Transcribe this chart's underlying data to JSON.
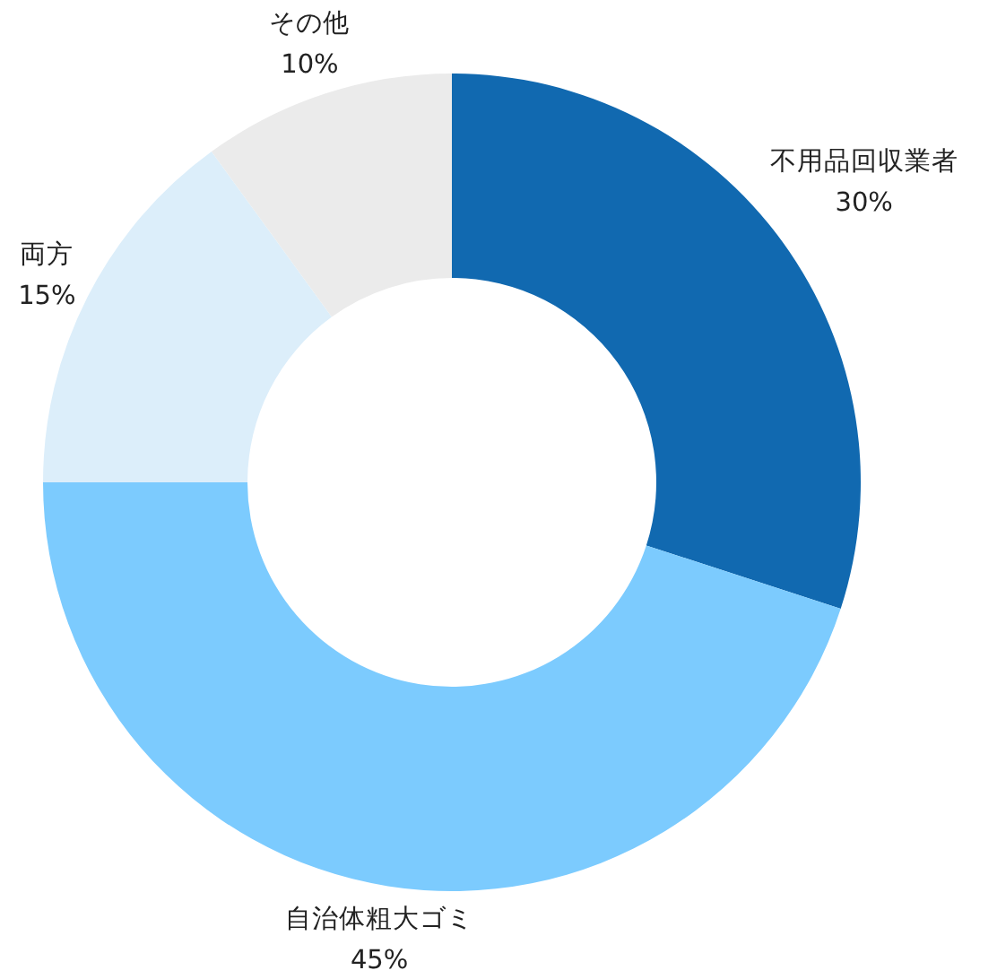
{
  "chart_data": {
    "type": "donut",
    "categories": [
      "不用品回収業者",
      "自治体粗大ゴミ",
      "両方",
      "その他"
    ],
    "values": [
      30,
      45,
      15,
      10
    ],
    "value_labels": [
      "30%",
      "45%",
      "15%",
      "10%"
    ],
    "colors": [
      "#1169b0",
      "#7ccbfe",
      "#dceefa",
      "#ebebeb"
    ]
  }
}
